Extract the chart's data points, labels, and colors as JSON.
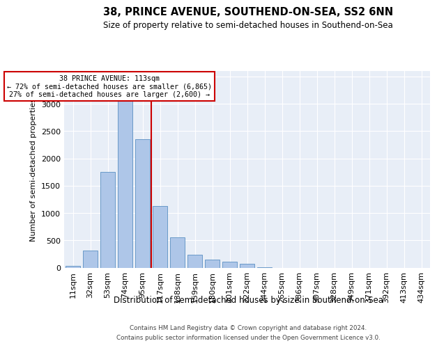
{
  "title": "38, PRINCE AVENUE, SOUTHEND-ON-SEA, SS2 6NN",
  "subtitle": "Size of property relative to semi-detached houses in Southend-on-Sea",
  "xlabel": "Distribution of semi-detached houses by size in Southend-on-Sea",
  "ylabel": "Number of semi-detached properties",
  "categories": [
    "11sqm",
    "32sqm",
    "53sqm",
    "74sqm",
    "95sqm",
    "117sqm",
    "138sqm",
    "159sqm",
    "180sqm",
    "201sqm",
    "222sqm",
    "244sqm",
    "265sqm",
    "286sqm",
    "307sqm",
    "328sqm",
    "349sqm",
    "371sqm",
    "392sqm",
    "413sqm",
    "434sqm"
  ],
  "bar_heights": [
    30,
    310,
    1750,
    3060,
    2350,
    1130,
    560,
    230,
    145,
    110,
    65,
    10,
    0,
    0,
    0,
    0,
    0,
    0,
    0,
    0,
    0
  ],
  "bar_color": "#aec6e8",
  "bar_edge_color": "#5a8fc2",
  "vline_color": "#cc0000",
  "vline_x": 4.5,
  "marker_label": "38 PRINCE AVENUE: 113sqm",
  "annotation_line1": "← 72% of semi-detached houses are smaller (6,865)",
  "annotation_line2": "27% of semi-detached houses are larger (2,600) →",
  "ylim": [
    0,
    3600
  ],
  "yticks": [
    0,
    500,
    1000,
    1500,
    2000,
    2500,
    3000,
    3500
  ],
  "background_color": "#e8eef7",
  "grid_color": "#ffffff",
  "footer_line1": "Contains HM Land Registry data © Crown copyright and database right 2024.",
  "footer_line2": "Contains public sector information licensed under the Open Government Licence v3.0."
}
